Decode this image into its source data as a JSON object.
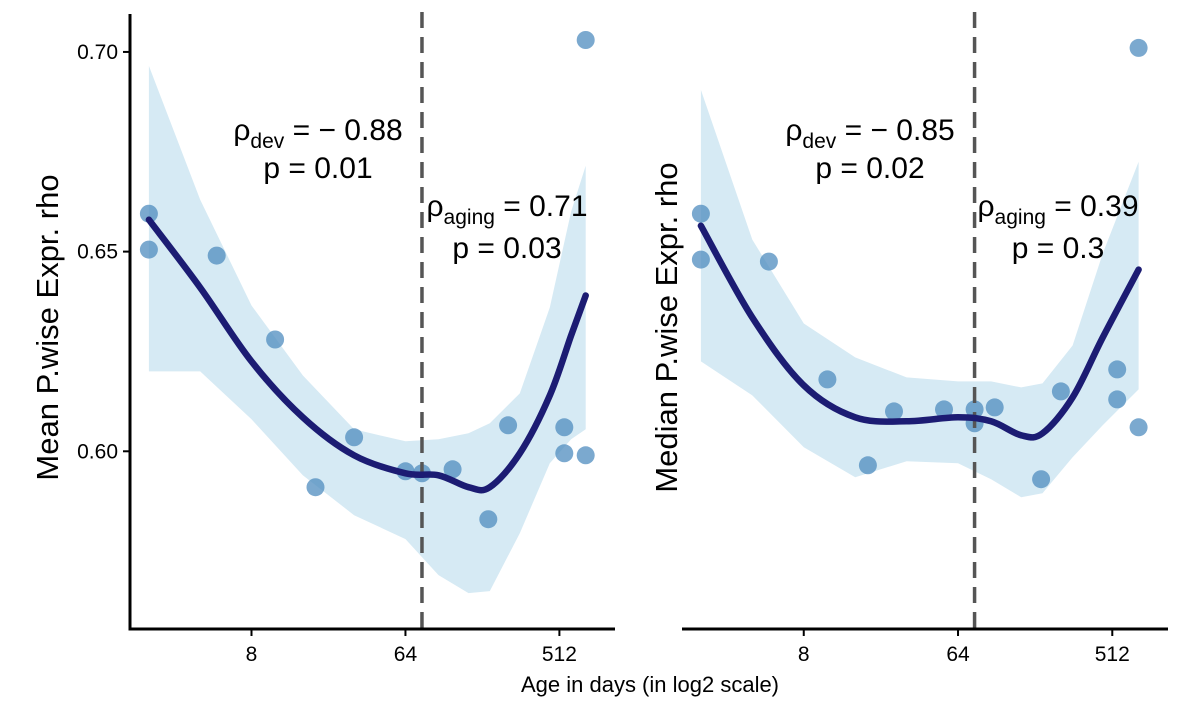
{
  "x_axis_title": "Age in days (in log2 scale)",
  "chart_data": [
    {
      "type": "scatter",
      "panel": "left",
      "ylabel": "Mean P.wise Expr. rho",
      "x_scale": "log2",
      "x_ticks": [
        8,
        64,
        512
      ],
      "x_tick_labels": [
        "8",
        "64",
        "512"
      ],
      "xlim": [
        1.55,
        1085
      ],
      "y_ticks": [
        0.6,
        0.65,
        0.7
      ],
      "y_tick_labels": [
        "0.60",
        "0.65",
        "0.70"
      ],
      "ylim": [
        0.5555,
        0.7095
      ],
      "vline_x": 80,
      "points": [
        {
          "x": 2,
          "y": 0.6595
        },
        {
          "x": 2,
          "y": 0.6505
        },
        {
          "x": 5,
          "y": 0.649
        },
        {
          "x": 11,
          "y": 0.628
        },
        {
          "x": 19,
          "y": 0.591
        },
        {
          "x": 32,
          "y": 0.6035
        },
        {
          "x": 64,
          "y": 0.595
        },
        {
          "x": 80,
          "y": 0.5945
        },
        {
          "x": 121,
          "y": 0.5955
        },
        {
          "x": 196,
          "y": 0.583
        },
        {
          "x": 256,
          "y": 0.6065
        },
        {
          "x": 547,
          "y": 0.606
        },
        {
          "x": 547,
          "y": 0.5995
        },
        {
          "x": 730,
          "y": 0.599
        },
        {
          "x": 730,
          "y": 0.703
        }
      ],
      "fit": [
        {
          "x": 2,
          "y": 0.658
        },
        {
          "x": 4,
          "y": 0.641
        },
        {
          "x": 8,
          "y": 0.6225
        },
        {
          "x": 16,
          "y": 0.6085
        },
        {
          "x": 32,
          "y": 0.599
        },
        {
          "x": 64,
          "y": 0.5945
        },
        {
          "x": 100,
          "y": 0.594
        },
        {
          "x": 150,
          "y": 0.591
        },
        {
          "x": 200,
          "y": 0.591
        },
        {
          "x": 300,
          "y": 0.5995
        },
        {
          "x": 450,
          "y": 0.614
        },
        {
          "x": 600,
          "y": 0.629
        },
        {
          "x": 730,
          "y": 0.639
        }
      ],
      "ci_upper": [
        {
          "x": 2,
          "y": 0.6965
        },
        {
          "x": 4,
          "y": 0.663
        },
        {
          "x": 8,
          "y": 0.6365
        },
        {
          "x": 16,
          "y": 0.619
        },
        {
          "x": 32,
          "y": 0.6055
        },
        {
          "x": 64,
          "y": 0.6025
        },
        {
          "x": 100,
          "y": 0.603
        },
        {
          "x": 150,
          "y": 0.6045
        },
        {
          "x": 200,
          "y": 0.607
        },
        {
          "x": 300,
          "y": 0.6145
        },
        {
          "x": 450,
          "y": 0.636
        },
        {
          "x": 600,
          "y": 0.66
        },
        {
          "x": 730,
          "y": 0.6715
        }
      ],
      "ci_lower": [
        {
          "x": 2,
          "y": 0.62
        },
        {
          "x": 4,
          "y": 0.62
        },
        {
          "x": 8,
          "y": 0.608
        },
        {
          "x": 16,
          "y": 0.594
        },
        {
          "x": 32,
          "y": 0.584
        },
        {
          "x": 64,
          "y": 0.578
        },
        {
          "x": 100,
          "y": 0.569
        },
        {
          "x": 150,
          "y": 0.5645
        },
        {
          "x": 200,
          "y": 0.565
        },
        {
          "x": 300,
          "y": 0.5795
        },
        {
          "x": 450,
          "y": 0.597
        },
        {
          "x": 600,
          "y": 0.603
        },
        {
          "x": 730,
          "y": 0.6055
        }
      ],
      "annotations": [
        {
          "label": "dev",
          "rho": "= − 0.88",
          "p": "p = 0.01"
        },
        {
          "label": "aging",
          "rho": "= 0.71",
          "p": "p = 0.03"
        }
      ]
    },
    {
      "type": "scatter",
      "panel": "right",
      "ylabel": "Median P.wise Expr. rho",
      "x_scale": "log2",
      "x_ticks": [
        8,
        64,
        512
      ],
      "x_tick_labels": [
        "8",
        "64",
        "512"
      ],
      "xlim": [
        1.55,
        1085
      ],
      "ylim": [
        0.5555,
        0.7095
      ],
      "vline_x": 80,
      "points": [
        {
          "x": 2,
          "y": 0.6595
        },
        {
          "x": 2,
          "y": 0.648
        },
        {
          "x": 5,
          "y": 0.6475
        },
        {
          "x": 11,
          "y": 0.618
        },
        {
          "x": 19,
          "y": 0.5965
        },
        {
          "x": 27,
          "y": 0.61
        },
        {
          "x": 53,
          "y": 0.6105
        },
        {
          "x": 80,
          "y": 0.6105
        },
        {
          "x": 80,
          "y": 0.607
        },
        {
          "x": 105,
          "y": 0.611
        },
        {
          "x": 196,
          "y": 0.593
        },
        {
          "x": 256,
          "y": 0.615
        },
        {
          "x": 547,
          "y": 0.6205
        },
        {
          "x": 547,
          "y": 0.613
        },
        {
          "x": 730,
          "y": 0.606
        },
        {
          "x": 730,
          "y": 0.701
        }
      ],
      "fit": [
        {
          "x": 2,
          "y": 0.6565
        },
        {
          "x": 4,
          "y": 0.6335
        },
        {
          "x": 8,
          "y": 0.6165
        },
        {
          "x": 16,
          "y": 0.6085
        },
        {
          "x": 32,
          "y": 0.6075
        },
        {
          "x": 64,
          "y": 0.6085
        },
        {
          "x": 100,
          "y": 0.6075
        },
        {
          "x": 150,
          "y": 0.604
        },
        {
          "x": 200,
          "y": 0.6045
        },
        {
          "x": 300,
          "y": 0.6135
        },
        {
          "x": 450,
          "y": 0.6285
        },
        {
          "x": 730,
          "y": 0.6455
        }
      ],
      "ci_upper": [
        {
          "x": 2,
          "y": 0.6905
        },
        {
          "x": 4,
          "y": 0.653
        },
        {
          "x": 8,
          "y": 0.632
        },
        {
          "x": 16,
          "y": 0.6235
        },
        {
          "x": 32,
          "y": 0.6185
        },
        {
          "x": 64,
          "y": 0.6175
        },
        {
          "x": 100,
          "y": 0.6175
        },
        {
          "x": 150,
          "y": 0.616
        },
        {
          "x": 200,
          "y": 0.617
        },
        {
          "x": 300,
          "y": 0.6265
        },
        {
          "x": 450,
          "y": 0.6495
        },
        {
          "x": 730,
          "y": 0.6725
        }
      ],
      "ci_lower": [
        {
          "x": 2,
          "y": 0.6225
        },
        {
          "x": 4,
          "y": 0.614
        },
        {
          "x": 8,
          "y": 0.601
        },
        {
          "x": 16,
          "y": 0.5935
        },
        {
          "x": 32,
          "y": 0.5975
        },
        {
          "x": 64,
          "y": 0.597
        },
        {
          "x": 100,
          "y": 0.593
        },
        {
          "x": 150,
          "y": 0.5885
        },
        {
          "x": 200,
          "y": 0.5895
        },
        {
          "x": 300,
          "y": 0.5985
        },
        {
          "x": 450,
          "y": 0.6065
        },
        {
          "x": 730,
          "y": 0.6155
        }
      ],
      "annotations": [
        {
          "label": "dev",
          "rho": "= − 0.85",
          "p": "p = 0.02"
        },
        {
          "label": "aging",
          "rho": "= 0.39",
          "p": "p = 0.3"
        }
      ]
    }
  ],
  "colors": {
    "point": "#4f8cbf",
    "fit_line": "#1c1c73",
    "ci_band": "#d6eaf4",
    "vline": "#555555",
    "axis": "#000000"
  }
}
